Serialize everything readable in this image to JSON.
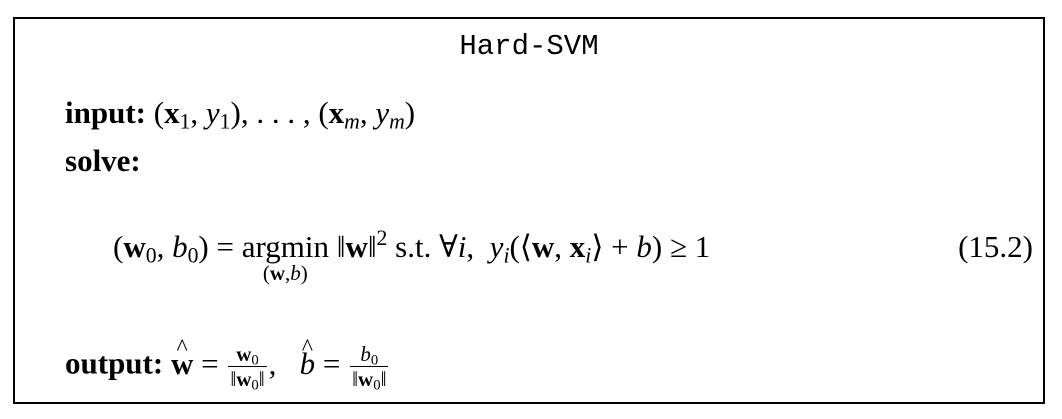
{
  "algorithm": {
    "title": "Hard-SVM",
    "input_label": "input:",
    "solve_label": "solve:",
    "output_label": "output:",
    "equation_number": "(15.2)",
    "argmin_word": "argmin",
    "st_text": "s.t.",
    "forall_text": "∀"
  }
}
